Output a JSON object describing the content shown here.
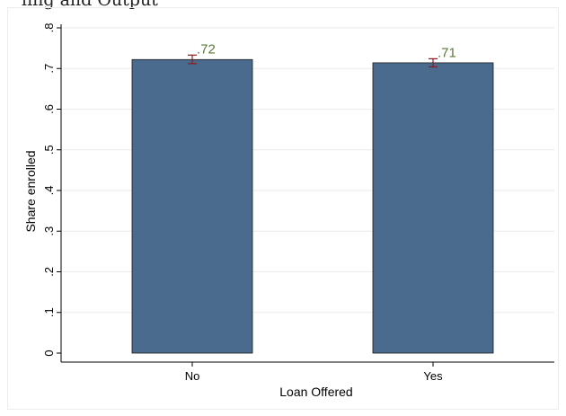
{
  "header": {
    "title": "ling and Output"
  },
  "chart_data": {
    "type": "bar",
    "title": "",
    "xlabel": "Loan Offered",
    "ylabel": "Share enrolled",
    "categories": [
      "No",
      "Yes"
    ],
    "values": [
      0.722,
      0.714
    ],
    "value_labels": [
      ".72",
      ".71"
    ],
    "error_bars": [
      {
        "low": 0.712,
        "high": 0.733
      },
      {
        "low": 0.704,
        "high": 0.724
      }
    ],
    "ylim": [
      0,
      0.8
    ],
    "yticks": [
      0,
      0.1,
      0.2,
      0.3,
      0.4,
      0.5,
      0.6,
      0.7,
      0.8
    ],
    "ytick_labels": [
      "0",
      ".1",
      ".2",
      ".3",
      ".4",
      ".5",
      ".6",
      ".7",
      ".8"
    ],
    "grid": true,
    "legend": "none",
    "colors": {
      "bar": "#4a6b8d",
      "bar_edge": "#1a1a1a",
      "error_bar": "#8b1a1a",
      "data_label": "#5a7a3a",
      "grid": "#eaeaea"
    }
  }
}
